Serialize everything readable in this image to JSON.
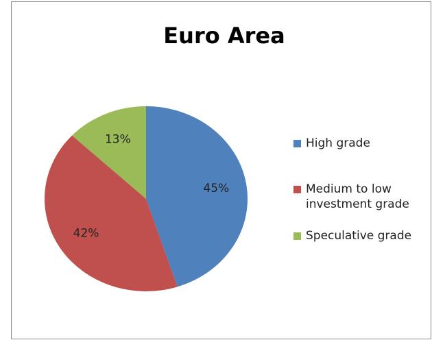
{
  "chart_data": {
    "type": "pie",
    "title": "Euro Area",
    "categories": [
      "High grade",
      "Medium to low investment grade",
      "Speculative grade"
    ],
    "values": [
      45,
      42,
      13
    ],
    "value_labels": [
      "45%",
      "42%",
      "13%"
    ],
    "colors": [
      "#4f81bd",
      "#c0504d",
      "#9bbb59"
    ],
    "legend": "right"
  }
}
